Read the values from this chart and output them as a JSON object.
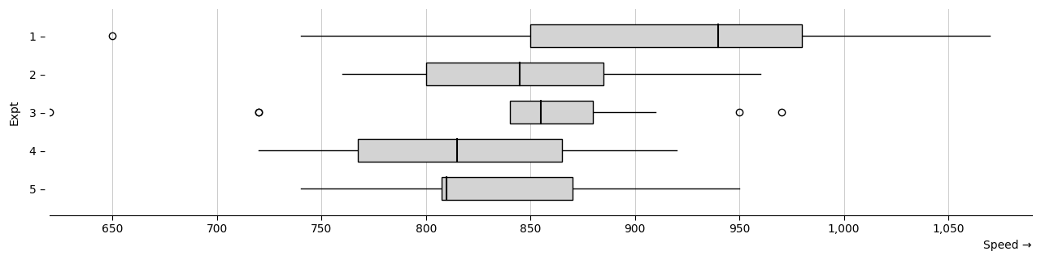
{
  "title": "",
  "xlabel": "Speed →",
  "ylabel": "Expt",
  "xlim": [
    620,
    1090
  ],
  "xticks": [
    650,
    700,
    750,
    800,
    850,
    900,
    950,
    1000,
    1050
  ],
  "xticklabels": [
    "650",
    "700",
    "750",
    "800",
    "850",
    "900",
    "950",
    "1,000",
    "1,050"
  ],
  "box_color": "#d3d3d3",
  "median_color": "#000000",
  "whisker_color": "#000000",
  "outlier_color": "#000000",
  "background_color": "#ffffff",
  "michelson_data": {
    "1": [
      850,
      740,
      900,
      1070,
      930,
      850,
      950,
      980,
      980,
      880,
      1000,
      980,
      930,
      650,
      760,
      810,
      1000,
      1000,
      960,
      960
    ],
    "2": [
      960,
      940,
      960,
      940,
      880,
      800,
      850,
      880,
      900,
      840,
      830,
      790,
      810,
      880,
      880,
      830,
      800,
      790,
      760,
      800
    ],
    "3": [
      880,
      880,
      880,
      860,
      720,
      720,
      620,
      860,
      970,
      950,
      880,
      910,
      850,
      870,
      840,
      840,
      850,
      840,
      840,
      840
    ],
    "4": [
      890,
      810,
      810,
      820,
      800,
      770,
      760,
      740,
      750,
      760,
      910,
      920,
      890,
      860,
      880,
      720,
      840,
      850,
      850,
      780
    ],
    "5": [
      890,
      840,
      780,
      810,
      760,
      810,
      790,
      810,
      820,
      850,
      870,
      870,
      810,
      740,
      810,
      940,
      950,
      800,
      810,
      870
    ]
  }
}
